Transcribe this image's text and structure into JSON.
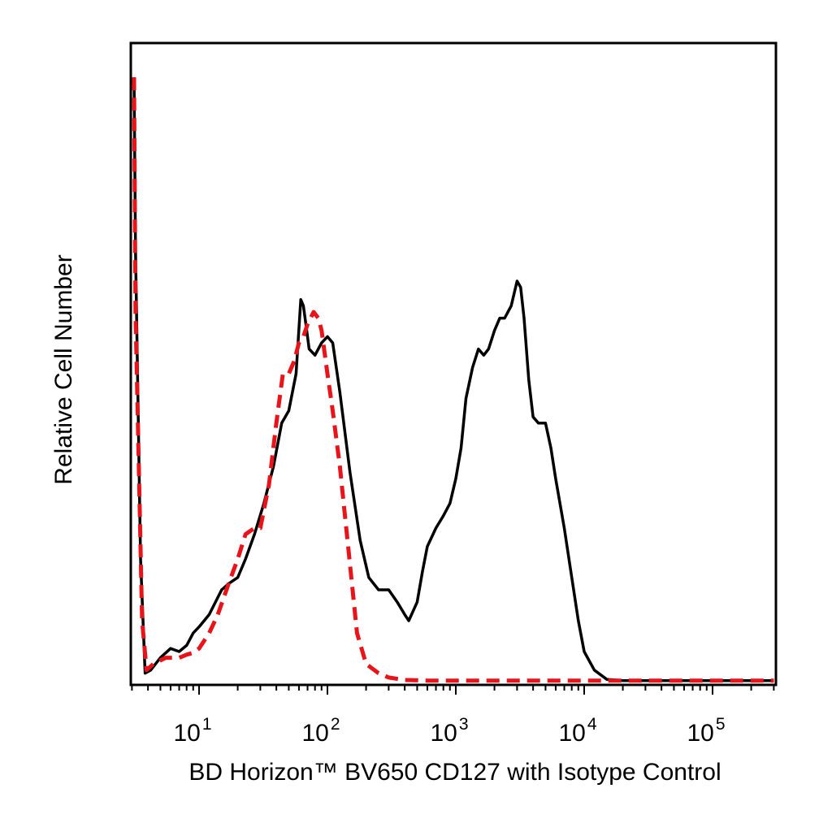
{
  "chart_data": {
    "type": "line",
    "title": "",
    "xlabel": "BD Horizon™ BV650 CD127 with Isotype Control",
    "ylabel": "Relative Cell Number",
    "xscale": "biexponential-log",
    "xlim": [
      3,
      300000
    ],
    "ylim": [
      0,
      100
    ],
    "grid": false,
    "legend": "none",
    "x_ticks": [
      {
        "value": 10,
        "base": "10",
        "exp": "1"
      },
      {
        "value": 100,
        "base": "10",
        "exp": "2"
      },
      {
        "value": 1000,
        "base": "10",
        "exp": "3"
      },
      {
        "value": 10000,
        "base": "10",
        "exp": "4"
      },
      {
        "value": 100000,
        "base": "10",
        "exp": "5"
      }
    ],
    "series": [
      {
        "color": "#000000",
        "style": "solid",
        "points": [
          [
            3,
            98
          ],
          [
            3.2,
            70
          ],
          [
            3.5,
            20
          ],
          [
            3.8,
            1.5
          ],
          [
            4.2,
            2
          ],
          [
            5,
            4
          ],
          [
            6,
            5.5
          ],
          [
            7,
            5
          ],
          [
            8,
            6
          ],
          [
            9,
            8
          ],
          [
            10,
            9
          ],
          [
            12,
            11
          ],
          [
            15,
            15
          ],
          [
            17,
            16
          ],
          [
            20,
            17
          ],
          [
            23,
            20
          ],
          [
            27,
            24
          ],
          [
            32,
            29
          ],
          [
            38,
            35
          ],
          [
            44,
            42
          ],
          [
            50,
            44
          ],
          [
            57,
            50
          ],
          [
            62,
            62
          ],
          [
            65,
            61
          ],
          [
            68,
            58
          ],
          [
            72,
            54
          ],
          [
            80,
            53
          ],
          [
            90,
            55
          ],
          [
            100,
            56
          ],
          [
            110,
            55
          ],
          [
            125,
            47
          ],
          [
            150,
            34
          ],
          [
            180,
            23
          ],
          [
            210,
            17
          ],
          [
            250,
            15
          ],
          [
            300,
            15
          ],
          [
            350,
            13
          ],
          [
            400,
            11
          ],
          [
            430,
            10
          ],
          [
            500,
            13
          ],
          [
            550,
            18
          ],
          [
            600,
            22
          ],
          [
            700,
            25
          ],
          [
            800,
            27
          ],
          [
            900,
            29
          ],
          [
            1000,
            33
          ],
          [
            1100,
            38
          ],
          [
            1200,
            46
          ],
          [
            1350,
            51
          ],
          [
            1500,
            54
          ],
          [
            1650,
            53
          ],
          [
            1800,
            54
          ],
          [
            2000,
            57
          ],
          [
            2200,
            59
          ],
          [
            2400,
            59
          ],
          [
            2700,
            61
          ],
          [
            3000,
            65
          ],
          [
            3200,
            64
          ],
          [
            3400,
            59
          ],
          [
            3700,
            49
          ],
          [
            4000,
            43
          ],
          [
            4400,
            42
          ],
          [
            5000,
            42
          ],
          [
            5500,
            38
          ],
          [
            6000,
            33
          ],
          [
            7000,
            25
          ],
          [
            8000,
            17
          ],
          [
            9000,
            10
          ],
          [
            10000,
            5
          ],
          [
            12000,
            2
          ],
          [
            15000,
            0.5
          ],
          [
            20000,
            0.3
          ],
          [
            300000,
            0.3
          ]
        ]
      },
      {
        "color": "#e8141a",
        "style": "dashed",
        "points": [
          [
            3,
            98
          ],
          [
            3.2,
            60
          ],
          [
            3.6,
            10
          ],
          [
            3.9,
            2
          ],
          [
            4.4,
            3
          ],
          [
            5.5,
            4
          ],
          [
            7,
            4
          ],
          [
            8,
            4.5
          ],
          [
            9,
            4.8
          ],
          [
            10,
            5.5
          ],
          [
            12,
            8
          ],
          [
            14,
            11
          ],
          [
            17,
            16
          ],
          [
            20,
            20
          ],
          [
            23,
            24
          ],
          [
            27,
            25
          ],
          [
            30,
            25
          ],
          [
            35,
            32
          ],
          [
            40,
            42
          ],
          [
            45,
            50
          ],
          [
            50,
            50
          ],
          [
            55,
            52
          ],
          [
            60,
            55
          ],
          [
            65,
            56
          ],
          [
            70,
            58
          ],
          [
            78,
            60
          ],
          [
            85,
            59
          ],
          [
            90,
            57
          ],
          [
            100,
            50
          ],
          [
            110,
            44
          ],
          [
            125,
            35
          ],
          [
            145,
            22
          ],
          [
            170,
            8
          ],
          [
            200,
            3
          ],
          [
            250,
            1.5
          ],
          [
            300,
            0.8
          ],
          [
            400,
            0.4
          ],
          [
            600,
            0.3
          ],
          [
            300000,
            0.3
          ]
        ]
      }
    ]
  }
}
